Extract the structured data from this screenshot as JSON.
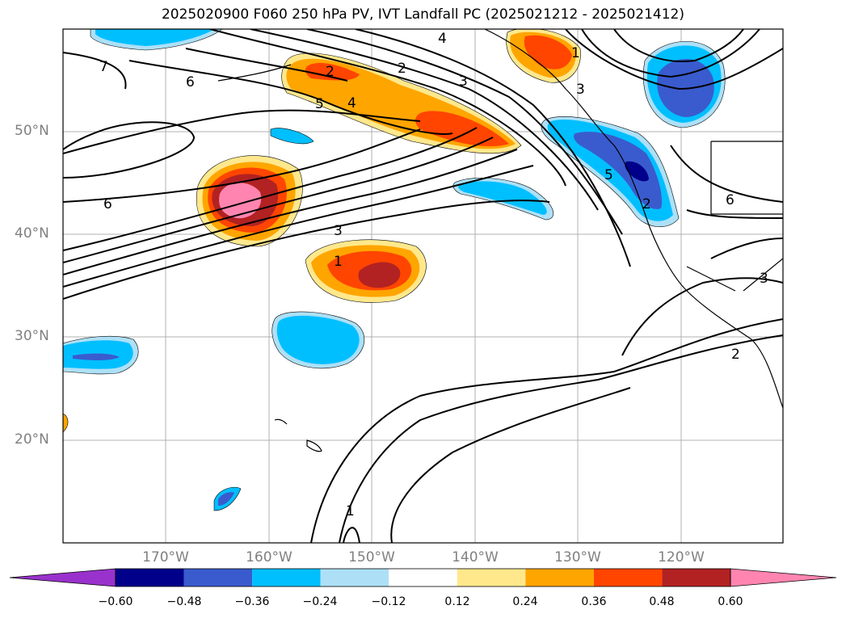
{
  "title": "2025020900 F060 250 hPa PV, IVT Landfall PC (2025021212 - 2025021412)",
  "lat_labels": [
    "50°N",
    "40°N",
    "30°N",
    "20°N"
  ],
  "lon_labels": [
    "170°W",
    "160°W",
    "150°W",
    "140°W",
    "130°W",
    "120°W"
  ],
  "colorbar": {
    "ticks": [
      "−0.60",
      "−0.48",
      "−0.36",
      "−0.24",
      "−0.12",
      "0.12",
      "0.24",
      "0.36",
      "0.48",
      "0.60"
    ],
    "colors": [
      "#9932CC",
      "#00008B",
      "#3A5BCD",
      "#00BFFF",
      "#ADE0F7",
      "#FFFFFF",
      "#FFE88C",
      "#FFA500",
      "#FF4500",
      "#B22222",
      "#FF85B0"
    ]
  },
  "contour_labels": [
    "7",
    "6",
    "5",
    "4",
    "3",
    "2",
    "1",
    "4",
    "3",
    "2",
    "1",
    "6",
    "3",
    "1",
    "2",
    "5",
    "6",
    "3",
    "2"
  ]
}
